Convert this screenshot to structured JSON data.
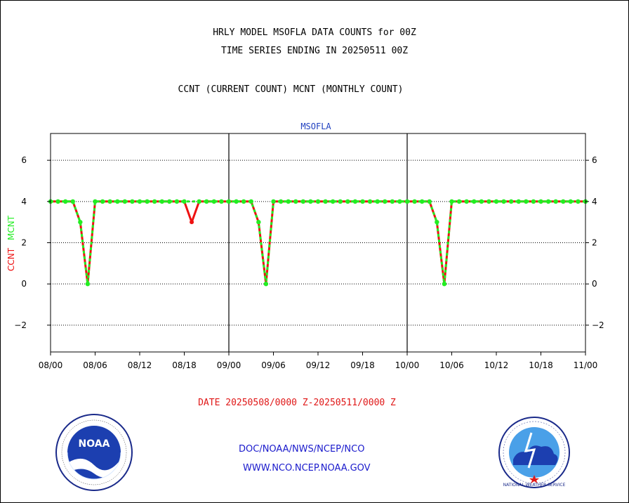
{
  "title": {
    "line1": "HRLY MODEL MSOFLA DATA COUNTS for 00Z",
    "line2": "TIME SERIES ENDING IN 20250511 00Z",
    "line3": "CCNT (CURRENT COUNT) MCNT (MONTHLY COUNT)"
  },
  "panel_label": "MSOFLA",
  "y_axis_label": {
    "ccnt": "CCNT",
    "mcnt": "MCNT"
  },
  "date_range": "DATE 20250508/0000 Z-20250511/0000 Z",
  "links": {
    "doc": "DOC/NOAA/NWS/NCEP/NCO",
    "www": "WWW.NCO.NCEP.NOAA.GOV"
  },
  "colors": {
    "ccnt": "#ee1111",
    "mcnt": "#22ee22",
    "text_blue": "#1a1acc",
    "date_red": "#e01818"
  },
  "logos": {
    "left": "NOAA",
    "right": "NATIONAL WEATHER SERVICE"
  },
  "chart_data": {
    "type": "line",
    "title": "HRLY MODEL MSOFLA DATA COUNTS for 00Z",
    "xlabel": "DATE 20250508/0000 Z-20250511/0000 Z",
    "ylabel": "CCNT  MCNT",
    "x_ticks": [
      "08/00",
      "08/06",
      "08/12",
      "08/18",
      "09/00",
      "09/06",
      "09/12",
      "09/18",
      "10/00",
      "10/06",
      "10/12",
      "10/18",
      "11/00"
    ],
    "y_ticks": [
      6,
      4,
      2,
      0,
      -2
    ],
    "ylim": [
      -3.3,
      7.3
    ],
    "xlim_hours": [
      0,
      72
    ],
    "grid": true,
    "series": [
      {
        "name": "CCNT",
        "hours": [
          0,
          1,
          2,
          3,
          4,
          5,
          6,
          7,
          8,
          9,
          10,
          11,
          12,
          13,
          14,
          15,
          16,
          17,
          18,
          19,
          20,
          21,
          22,
          23,
          24,
          25,
          26,
          27,
          28,
          29,
          30,
          31,
          32,
          33,
          34,
          35,
          36,
          37,
          38,
          39,
          40,
          41,
          42,
          43,
          44,
          45,
          46,
          47,
          48,
          49,
          50,
          51,
          52,
          53,
          54,
          55,
          56,
          57,
          58,
          59,
          60,
          61,
          62,
          63,
          64,
          65,
          66,
          67,
          68,
          69,
          70,
          71,
          72
        ],
        "values": [
          4,
          4,
          4,
          4,
          3,
          0,
          4,
          4,
          4,
          4,
          4,
          4,
          4,
          4,
          4,
          4,
          4,
          4,
          4,
          3,
          4,
          4,
          4,
          4,
          4,
          4,
          4,
          4,
          3,
          0,
          4,
          4,
          4,
          4,
          4,
          4,
          4,
          4,
          4,
          4,
          4,
          4,
          4,
          4,
          4,
          4,
          4,
          4,
          4,
          4,
          4,
          4,
          3,
          0,
          4,
          4,
          4,
          4,
          4,
          4,
          4,
          4,
          4,
          4,
          4,
          4,
          4,
          4,
          4,
          4,
          4,
          4,
          4
        ]
      },
      {
        "name": "MCNT",
        "hours": [
          0,
          1,
          2,
          3,
          4,
          5,
          6,
          7,
          8,
          9,
          10,
          11,
          12,
          13,
          14,
          15,
          16,
          17,
          18,
          20,
          21,
          22,
          23,
          24,
          25,
          26,
          27,
          28,
          29,
          30,
          31,
          32,
          33,
          34,
          35,
          36,
          37,
          38,
          39,
          40,
          41,
          42,
          43,
          44,
          45,
          46,
          47,
          48,
          49,
          50,
          51,
          52,
          53,
          54,
          55,
          56,
          57,
          58,
          59,
          60,
          61,
          62,
          63,
          64,
          65,
          66,
          67,
          68,
          69,
          70,
          71,
          72
        ],
        "values": [
          4,
          4,
          4,
          4,
          3,
          0,
          4,
          4,
          4,
          4,
          4,
          4,
          4,
          4,
          4,
          4,
          4,
          4,
          4,
          4,
          4,
          4,
          4,
          4,
          4,
          4,
          4,
          3,
          0,
          4,
          4,
          4,
          4,
          4,
          4,
          4,
          4,
          4,
          4,
          4,
          4,
          4,
          4,
          4,
          4,
          4,
          4,
          4,
          4,
          4,
          4,
          3,
          0,
          4,
          4,
          4,
          4,
          4,
          4,
          4,
          4,
          4,
          4,
          4,
          4,
          4,
          4,
          4,
          4,
          4,
          4,
          4
        ]
      }
    ]
  }
}
